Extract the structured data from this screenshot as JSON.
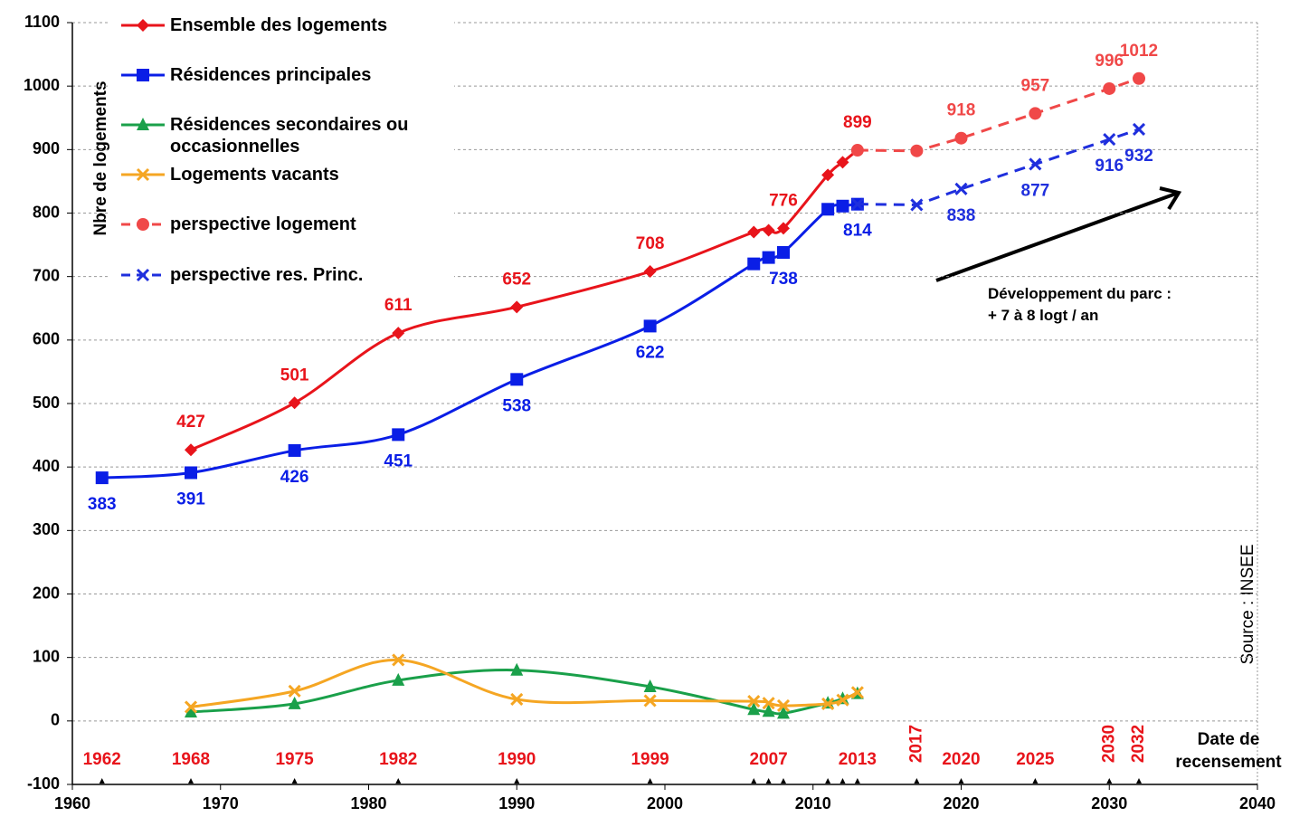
{
  "chart_data": {
    "type": "line",
    "y_label": "Nbre de logements",
    "x_label": "Date de recensement",
    "source": "Source : INSEE",
    "annotation": "Développement du parc :",
    "annotation2": "+ 7 à 8 logt / an",
    "xlim": [
      1960,
      2040
    ],
    "xticks": [
      1960,
      1970,
      1980,
      1990,
      2000,
      2010,
      2020,
      2030,
      2040
    ],
    "ylim": [
      -100,
      1100
    ],
    "yticks": [
      -100,
      0,
      100,
      200,
      300,
      400,
      500,
      600,
      700,
      800,
      900,
      1000,
      1100
    ],
    "grid": true,
    "census_labels": [
      1962,
      1968,
      1975,
      1982,
      1990,
      1999,
      2007,
      2013,
      2020,
      2025
    ],
    "census_labels_vertical": [
      2017,
      2030,
      2032
    ],
    "census_markers": [
      1962,
      1968,
      1975,
      1982,
      1990,
      1999,
      2006,
      2007,
      2008,
      2011,
      2012,
      2013,
      2017,
      2020,
      2025,
      2030,
      2032
    ],
    "series": [
      {
        "name": "Ensemble des logements",
        "color": "#e8141b",
        "marker": "diamond",
        "dash": false,
        "label_position": "above",
        "x": [
          1968,
          1975,
          1982,
          1990,
          1999,
          2006,
          2007,
          2008,
          2011,
          2012,
          2013
        ],
        "values": [
          427,
          501,
          611,
          652,
          708,
          770,
          773,
          776,
          860,
          880,
          899
        ],
        "value_labels": [
          "427",
          "501",
          "611",
          "652",
          "708",
          null,
          null,
          "776",
          null,
          null,
          "899"
        ]
      },
      {
        "name": "Résidences principales",
        "color": "#0a1ee6",
        "marker": "square",
        "dash": false,
        "label_position": "below",
        "x": [
          1962,
          1968,
          1975,
          1982,
          1990,
          1999,
          2006,
          2007,
          2008,
          2011,
          2012,
          2013
        ],
        "values": [
          383,
          391,
          426,
          451,
          538,
          622,
          720,
          730,
          738,
          806,
          811,
          814
        ],
        "value_labels": [
          "383",
          "391",
          "426",
          "451",
          "538",
          "622",
          null,
          null,
          "738",
          null,
          null,
          "814"
        ]
      },
      {
        "name": "Résidences secondaires ou occasionnelles",
        "color": "#1aa04a",
        "marker": "triangle",
        "dash": false,
        "x": [
          1968,
          1975,
          1982,
          1990,
          1999,
          2006,
          2007,
          2008,
          2011,
          2012,
          2013
        ],
        "values": [
          14,
          27,
          64,
          80,
          54,
          18,
          15,
          12,
          28,
          35,
          43
        ]
      },
      {
        "name": "Logements vacants",
        "color": "#f5a623",
        "marker": "x",
        "dash": false,
        "x": [
          1968,
          1975,
          1982,
          1990,
          1999,
          2006,
          2007,
          2008,
          2011,
          2012,
          2013
        ],
        "values": [
          22,
          47,
          96,
          34,
          32,
          31,
          28,
          24,
          27,
          33,
          45
        ]
      },
      {
        "name": "perspective logement",
        "color": "#f04848",
        "marker": "circle",
        "dash": true,
        "label_position": "above",
        "x": [
          2013,
          2017,
          2020,
          2025,
          2030,
          2032
        ],
        "values": [
          899,
          898,
          918,
          957,
          996,
          1012
        ],
        "value_labels": [
          null,
          null,
          "918",
          "957",
          "996",
          "1012"
        ]
      },
      {
        "name": "perspective res. Princ.",
        "color": "#1f2fdd",
        "marker": "x",
        "dash": true,
        "label_position": "below",
        "x": [
          2013,
          2017,
          2020,
          2025,
          2030,
          2032
        ],
        "values": [
          814,
          813,
          838,
          877,
          916,
          932
        ],
        "value_labels": [
          null,
          null,
          "838",
          "877",
          "916",
          "932"
        ]
      }
    ]
  }
}
